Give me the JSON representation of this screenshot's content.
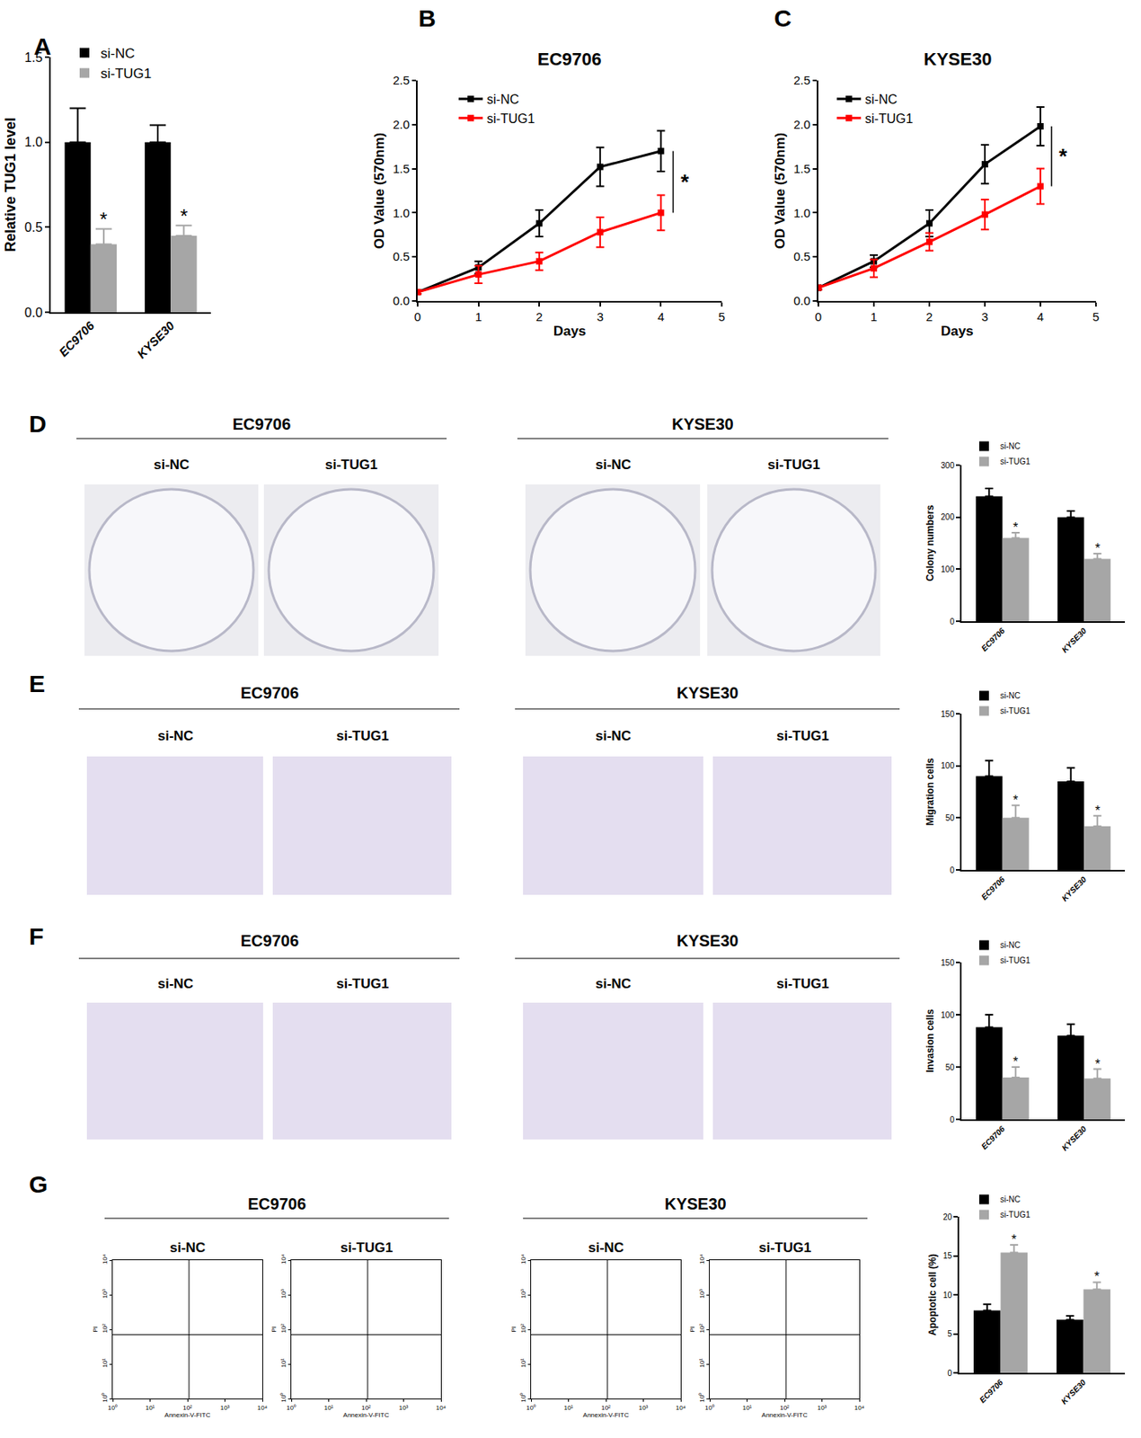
{
  "chart_data": [
    {
      "panel": "A",
      "type": "bar",
      "categories": [
        "EC9706",
        "KYSE30"
      ],
      "series": [
        {
          "name": "si-NC",
          "color": "#000000",
          "values": [
            1.0,
            1.0
          ],
          "errors": [
            0.2,
            0.1
          ]
        },
        {
          "name": "si-TUG1",
          "color": "#a6a6a6",
          "values": [
            0.4,
            0.45
          ],
          "errors": [
            0.09,
            0.06
          ],
          "significance": [
            "*",
            "*"
          ]
        }
      ],
      "y_label": "Relative TUG1 level",
      "ylim": [
        0,
        1.5
      ],
      "yticks": [
        {
          "value": 0,
          "label": "0.0"
        },
        0.5,
        {
          "value": 1,
          "label": "1.0"
        },
        1.5
      ],
      "legend": "top-left"
    },
    {
      "panel": "B",
      "type": "line",
      "title": "EC9706",
      "x": [
        0,
        1,
        2,
        3,
        4
      ],
      "series": [
        {
          "name": "si-NC",
          "color": "#000000",
          "values": [
            0.1,
            0.38,
            0.88,
            1.52,
            1.7
          ],
          "errors": [
            0.02,
            0.07,
            0.15,
            0.22,
            0.23
          ]
        },
        {
          "name": "si-TUG1",
          "color": "#ff0000",
          "values": [
            0.1,
            0.3,
            0.45,
            0.78,
            1.0
          ],
          "errors": [
            0.02,
            0.1,
            0.1,
            0.17,
            0.2
          ]
        }
      ],
      "x_label": "Days",
      "y_label": "OD Value (570nm)",
      "xlim": [
        0,
        5
      ],
      "xticks": [
        0,
        1,
        2,
        3,
        4,
        5
      ],
      "ylim": [
        0,
        2.5
      ],
      "yticks": [
        {
          "value": 0,
          "label": "0.0"
        },
        0.5,
        {
          "value": 1,
          "label": "1.0"
        },
        1.5,
        {
          "value": 2,
          "label": "2.0"
        },
        2.5
      ],
      "marker": "square",
      "legend": "top-left",
      "significance": "*"
    },
    {
      "panel": "C",
      "type": "line",
      "title": "KYSE30",
      "x": [
        0,
        1,
        2,
        3,
        4
      ],
      "series": [
        {
          "name": "si-NC",
          "color": "#000000",
          "values": [
            0.15,
            0.45,
            0.88,
            1.55,
            1.98
          ],
          "errors": [
            0.02,
            0.07,
            0.15,
            0.22,
            0.22
          ]
        },
        {
          "name": "si-TUG1",
          "color": "#ff0000",
          "values": [
            0.15,
            0.37,
            0.67,
            0.98,
            1.3
          ],
          "errors": [
            0.02,
            0.1,
            0.1,
            0.17,
            0.2
          ]
        }
      ],
      "x_label": "Days",
      "y_label": "OD Value (570nm)",
      "xlim": [
        0,
        5
      ],
      "xticks": [
        0,
        1,
        2,
        3,
        4,
        5
      ],
      "ylim": [
        0,
        2.5
      ],
      "yticks": [
        {
          "value": 0,
          "label": "0.0"
        },
        0.5,
        {
          "value": 1,
          "label": "1.0"
        },
        1.5,
        {
          "value": 2,
          "label": "2.0"
        },
        2.5
      ],
      "marker": "square",
      "legend": "top-left",
      "significance": "*"
    },
    {
      "panel": "D",
      "type": "bar",
      "images": {
        "groups": [
          "EC9706",
          "KYSE30"
        ],
        "conditions": [
          "si-NC",
          "si-TUG1"
        ]
      },
      "categories": [
        "EC9706",
        "KYSE30"
      ],
      "series": [
        {
          "name": "si-NC",
          "color": "#000000",
          "values": [
            240,
            200
          ],
          "errors": [
            15,
            12
          ]
        },
        {
          "name": "si-TUG1",
          "color": "#a6a6a6",
          "values": [
            160,
            120
          ],
          "errors": [
            10,
            10
          ],
          "significance": [
            "*",
            "*"
          ]
        }
      ],
      "y_label": "Colony numbers",
      "ylim": [
        0,
        300
      ],
      "yticks": [
        0,
        100,
        200,
        300
      ],
      "legend": "top"
    },
    {
      "panel": "E",
      "type": "bar",
      "images": {
        "groups": [
          "EC9706",
          "KYSE30"
        ],
        "conditions": [
          "si-NC",
          "si-TUG1"
        ]
      },
      "categories": [
        "EC9706",
        "KYSE30"
      ],
      "series": [
        {
          "name": "si-NC",
          "color": "#000000",
          "values": [
            90,
            85
          ],
          "errors": [
            15,
            13
          ]
        },
        {
          "name": "si-TUG1",
          "color": "#a6a6a6",
          "values": [
            50,
            42
          ],
          "errors": [
            12,
            10
          ],
          "significance": [
            "*",
            "*"
          ]
        }
      ],
      "y_label": "Migration cells",
      "ylim": [
        0,
        150
      ],
      "yticks": [
        0,
        50,
        100,
        150
      ],
      "legend": "top"
    },
    {
      "panel": "F",
      "type": "bar",
      "images": {
        "groups": [
          "EC9706",
          "KYSE30"
        ],
        "conditions": [
          "si-NC",
          "si-TUG1"
        ]
      },
      "categories": [
        "EC9706",
        "KYSE30"
      ],
      "series": [
        {
          "name": "si-NC",
          "color": "#000000",
          "values": [
            88,
            80
          ],
          "errors": [
            12,
            11
          ]
        },
        {
          "name": "si-TUG1",
          "color": "#a6a6a6",
          "values": [
            40,
            39
          ],
          "errors": [
            10,
            9
          ],
          "significance": [
            "*",
            "*"
          ]
        }
      ],
      "y_label": "Invasion cells",
      "ylim": [
        0,
        150
      ],
      "yticks": [
        0,
        50,
        100,
        150
      ],
      "legend": "top"
    },
    {
      "panel": "G",
      "type": "bar",
      "images": {
        "groups": [
          "EC9706",
          "KYSE30"
        ],
        "conditions": [
          "si-NC",
          "si-TUG1"
        ]
      },
      "flow": {
        "type": "scatter",
        "log": true,
        "x_label": "Annexin-V-FITC",
        "y_label": "PI",
        "xlim": [
          1,
          10000
        ],
        "ylim": [
          1,
          10000
        ],
        "xticks": [
          {
            "value": 1,
            "label": "10⁰"
          },
          {
            "value": 10,
            "label": "10¹"
          },
          {
            "value": 100,
            "label": "10²"
          },
          {
            "value": 1000,
            "label": "10³"
          },
          {
            "value": 10000,
            "label": "10⁴"
          }
        ],
        "yticks": [
          {
            "value": 1,
            "label": "10⁰"
          },
          {
            "value": 10,
            "label": "10¹"
          },
          {
            "value": 100,
            "label": "10²"
          },
          {
            "value": 1000,
            "label": "10³"
          },
          {
            "value": 10000,
            "label": "10⁴"
          }
        ],
        "gates": {
          "x": 110,
          "y": 70
        }
      },
      "categories": [
        "EC9706",
        "KYSE30"
      ],
      "series": [
        {
          "name": "si-NC",
          "color": "#000000",
          "values": [
            8,
            6.8
          ],
          "errors": [
            0.8,
            0.5
          ]
        },
        {
          "name": "si-TUG1",
          "color": "#a6a6a6",
          "values": [
            15.4,
            10.7
          ],
          "errors": [
            1,
            0.9
          ],
          "significance": [
            "*",
            "*"
          ]
        }
      ],
      "y_label": "Apoptotic cell (%)",
      "ylim": [
        0,
        20
      ],
      "yticks": [
        0,
        5,
        10,
        15,
        20
      ],
      "legend": "top"
    }
  ]
}
